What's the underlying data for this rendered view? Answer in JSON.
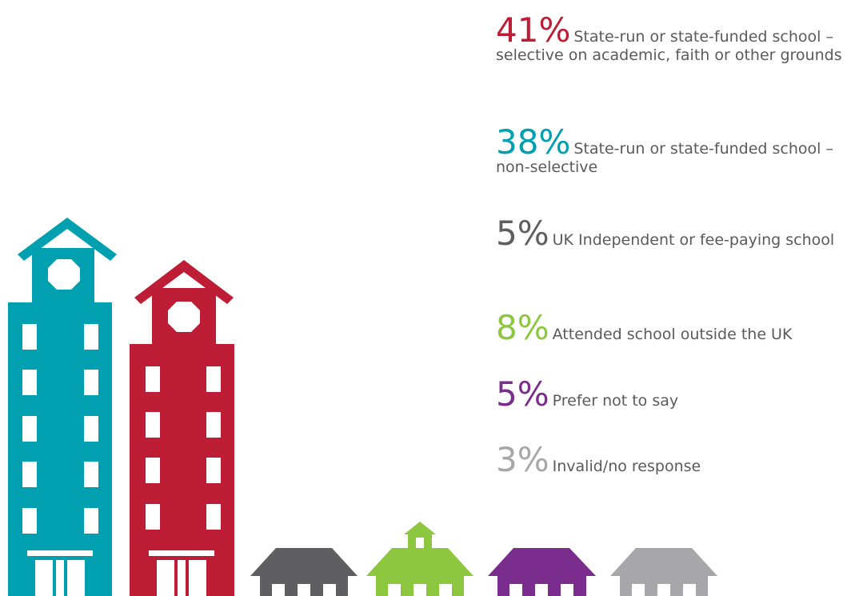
{
  "items": [
    {
      "percent": "41%",
      "text": "State-run or state-funded school – selective on academic, faith or other grounds",
      "color": "#be1e35"
    },
    {
      "percent": "38%",
      "text": "State-run or state-funded school – non-selective",
      "color": "#00a0b0"
    },
    {
      "percent": "5%",
      "text": "UK Independent or fee-paying school",
      "color": "#5f5f61"
    },
    {
      "percent": "8%",
      "text": "Attended school outside the UK",
      "color": "#8dc63f"
    },
    {
      "percent": "5%",
      "text": "Prefer not to say",
      "color": "#7b2d8e"
    },
    {
      "percent": "3%",
      "text": "Invalid/no response",
      "color": "#a7a7a9"
    }
  ]
}
